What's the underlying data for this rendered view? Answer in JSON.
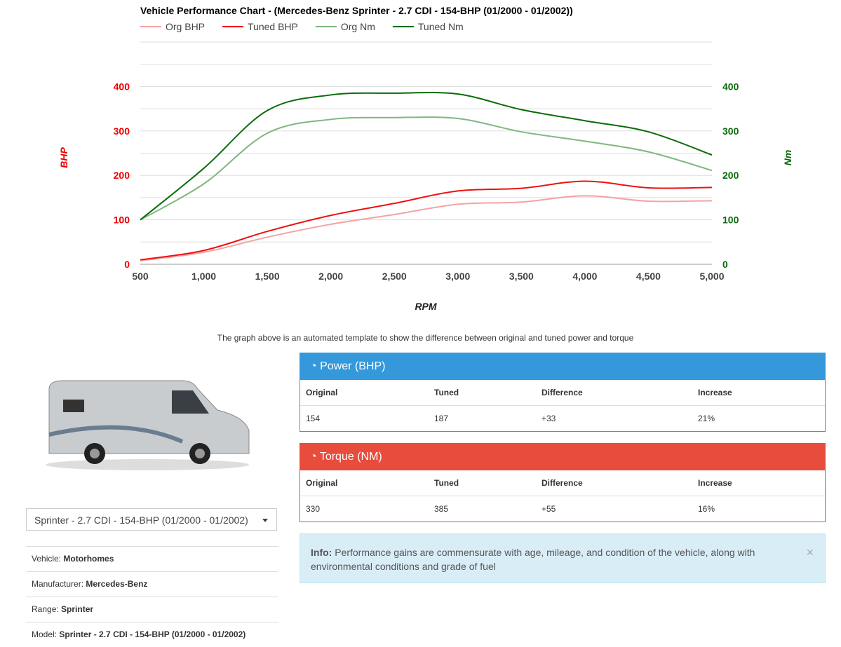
{
  "chart_data": {
    "type": "line",
    "title": "Vehicle Performance Chart - (Mercedes-Benz Sprinter - 2.7 CDI - 154-BHP (01/2000 - 01/2002))",
    "xlabel": "RPM",
    "ylabel_left": "BHP",
    "ylabel_right": "Nm",
    "x": [
      500,
      1000,
      1500,
      2000,
      2500,
      3000,
      3500,
      4000,
      4500,
      5000
    ],
    "x_ticks": [
      "500",
      "1,000",
      "1,500",
      "2,000",
      "2,500",
      "3,000",
      "3,500",
      "4,000",
      "4,500",
      "5,000"
    ],
    "y_ticks": [
      "0",
      "100",
      "200",
      "300",
      "400"
    ],
    "ylim": [
      0,
      500
    ],
    "grid": true,
    "legend": "top-left",
    "series": [
      {
        "name": "Org BHP",
        "axis": "left",
        "color": "#f4a3a3",
        "values": [
          8,
          27,
          61,
          90,
          112,
          135,
          140,
          154,
          142,
          143
        ]
      },
      {
        "name": "Tuned BHP",
        "axis": "left",
        "color": "#ee1111",
        "values": [
          10,
          31,
          74,
          110,
          137,
          165,
          171,
          187,
          172,
          173
        ]
      },
      {
        "name": "Org Nm",
        "axis": "right",
        "color": "#7fb77f",
        "values": [
          100,
          181,
          295,
          326,
          330,
          328,
          298,
          277,
          253,
          211
        ]
      },
      {
        "name": "Tuned Nm",
        "axis": "right",
        "color": "#0a6b0a",
        "values": [
          100,
          216,
          346,
          381,
          385,
          383,
          348,
          323,
          298,
          246
        ]
      }
    ]
  },
  "note": "The graph above is an automated template to show the difference between original and tuned power and torque",
  "select": "Sprinter - 2.7 CDI - 154-BHP (01/2000 - 01/2002)",
  "specs": [
    {
      "k": "Vehicle:",
      "v": "Motorhomes"
    },
    {
      "k": "Manufacturer:",
      "v": "Mercedes-Benz"
    },
    {
      "k": "Range:",
      "v": "Sprinter"
    },
    {
      "k": "Model:",
      "v": "Sprinter - 2.7 CDI - 154-BHP (01/2000 - 01/2002)"
    }
  ],
  "power": {
    "title": "Power (BHP)",
    "color": "#3498db",
    "headers": [
      "Original",
      "Tuned",
      "Difference",
      "Increase"
    ],
    "values": [
      "154",
      "187",
      "+33",
      "21%"
    ]
  },
  "torque": {
    "title": "Torque (NM)",
    "color": "#e74c3c",
    "headers": [
      "Original",
      "Tuned",
      "Difference",
      "Increase"
    ],
    "values": [
      "330",
      "385",
      "+55",
      "16%"
    ]
  },
  "info": {
    "label": "Info:",
    "text": " Performance gains are commensurate with age, mileage, and condition of the vehicle, along with environmental conditions and grade of fuel",
    "close": "×"
  }
}
